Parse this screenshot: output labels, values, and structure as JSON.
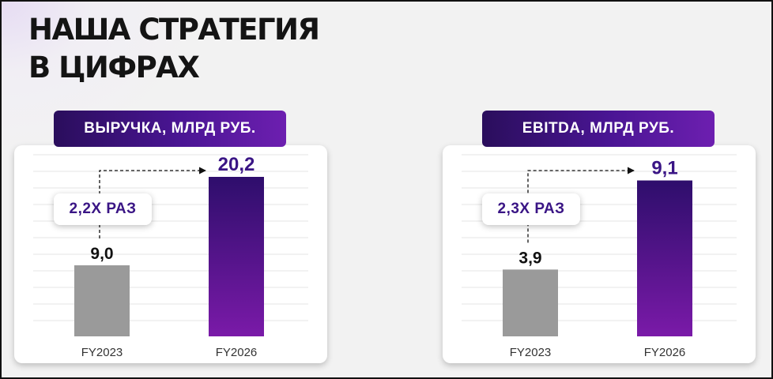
{
  "title": {
    "line1": "НАША СТРАТЕГИЯ",
    "line2": "В ЦИФРАХ"
  },
  "colors": {
    "base_bar": "#9a9a9a",
    "target_bar_top": "#2e0e6c",
    "target_bar_bottom": "#7a1aa8",
    "target_label": "#3a1585",
    "base_label": "#111111",
    "grid": "#e4e4e4"
  },
  "chart_data": [
    {
      "type": "bar",
      "title": "ВЫРУЧКА, МЛРД РУБ.",
      "categories": [
        "FY2023",
        "FY2026"
      ],
      "values": [
        9.0,
        20.2
      ],
      "value_labels": [
        "9,0",
        "20,2"
      ],
      "multiplier": "2,2Х РАЗ",
      "ylim": [
        0,
        23
      ]
    },
    {
      "type": "bar",
      "title": "EBITDA, МЛРД РУБ.",
      "categories": [
        "FY2023",
        "FY2026"
      ],
      "values": [
        3.9,
        9.1
      ],
      "value_labels": [
        "3,9",
        "9,1"
      ],
      "multiplier": "2,3Х РАЗ",
      "ylim": [
        0,
        10.6
      ]
    }
  ]
}
